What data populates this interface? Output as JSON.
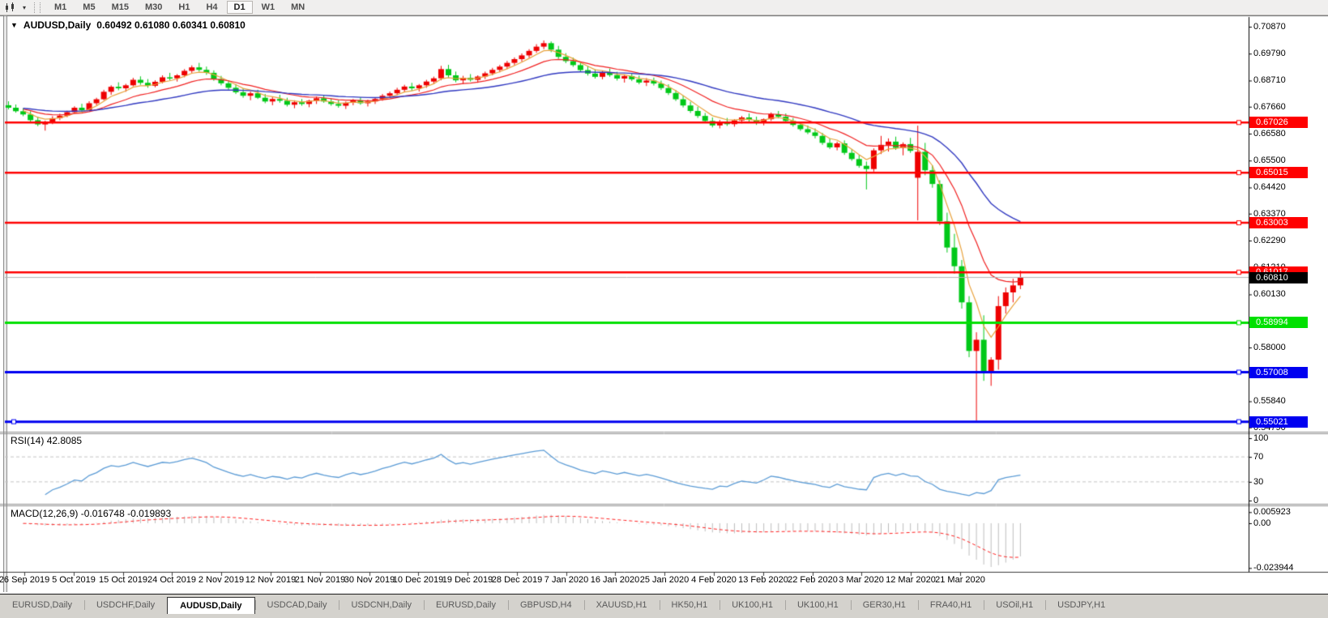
{
  "toolbar": {
    "timeframes": [
      "M1",
      "M5",
      "M15",
      "M30",
      "H1",
      "H4",
      "D1",
      "W1",
      "MN"
    ],
    "active_timeframe": "D1"
  },
  "icons": {
    "collapse_triangle": "▼",
    "dropdown_arrow": "▾"
  },
  "chart": {
    "title": "AUDUSD,Daily",
    "ohlc_text": "0.60492 0.61080 0.60341 0.60810"
  },
  "price_axis": {
    "ticks": [
      "0.70870",
      "0.69790",
      "0.68710",
      "0.67660",
      "0.66580",
      "0.65500",
      "0.64420",
      "0.63370",
      "0.62290",
      "0.61210",
      "0.60130",
      "0.58000",
      "0.56920",
      "0.55840",
      "0.54790"
    ]
  },
  "hlines": [
    {
      "label": "0.67026",
      "value": 0.67026,
      "color": "#FF0000",
      "width": 2.5
    },
    {
      "label": "0.65015",
      "value": 0.65015,
      "color": "#FF0000",
      "width": 2.5
    },
    {
      "label": "0.63003",
      "value": 0.63003,
      "color": "#FF0000",
      "width": 2.5
    },
    {
      "label": "0.61017",
      "value": 0.61017,
      "color": "#FF0000",
      "width": 2.5
    },
    {
      "label": "0.58994",
      "value": 0.58994,
      "color": "#00E000",
      "width": 3
    },
    {
      "label": "0.57008",
      "value": 0.57008,
      "color": "#0000F0",
      "width": 3
    },
    {
      "label": "0.55021",
      "value": 0.55021,
      "color": "#0000F0",
      "width": 3
    }
  ],
  "current_price": {
    "label": "0.60810",
    "value": 0.6081,
    "line_color": "#B4B4B4",
    "badge_color": "#000000"
  },
  "rsi": {
    "label": "RSI(14)",
    "value_text": "42.8085",
    "axis_ticks": [
      "100",
      "70",
      "30",
      "0"
    ],
    "levels": [
      70,
      30
    ],
    "line_color": "#5B9BD5"
  },
  "macd": {
    "label": "MACD(12,26,9)",
    "values_text": "-0.016748 -0.019893",
    "axis_ticks": [
      "0.005923",
      "0.00",
      "-0.023944"
    ],
    "hist_color": "#BDBDBD",
    "signal_color": "#FF2020"
  },
  "date_axis": {
    "labels": [
      "26 Sep 2019",
      "5 Oct 2019",
      "15 Oct 2019",
      "24 Oct 2019",
      "2 Nov 2019",
      "12 Nov 2019",
      "21 Nov 2019",
      "30 Nov 2019",
      "10 Dec 2019",
      "19 Dec 2019",
      "28 Dec 2019",
      "7 Jan 2020",
      "16 Jan 2020",
      "25 Jan 2020",
      "4 Feb 2020",
      "13 Feb 2020",
      "22 Feb 2020",
      "3 Mar 2020",
      "12 Mar 2020",
      "21 Mar 2020"
    ]
  },
  "tabs": {
    "labels": [
      "EURUSD,Daily",
      "USDCHF,Daily",
      "AUDUSD,Daily",
      "USDCAD,Daily",
      "USDCNH,Daily",
      "EURUSD,Daily",
      "GBPUSD,H4",
      "XAUUSD,H1",
      "HK50,H1",
      "UK100,H1",
      "UK100,H1",
      "GER30,H1",
      "FRA40,H1",
      "USOil,H1",
      "USDJPY,H1"
    ],
    "active_index": 2
  },
  "colors": {
    "bull": "#EE0000",
    "bear": "#00C818",
    "ma_fast": "#E8A23C",
    "ma_mid": "#F02020",
    "ma_slow": "#3038C0",
    "rsi_level_dash": "#C4C4C4",
    "axis_line": "#000000"
  },
  "chart_data": {
    "type": "candlestick",
    "symbol": "AUDUSD",
    "timeframe": "Daily",
    "title": "AUDUSD,Daily 0.60492 0.61080 0.60341 0.60810",
    "y_range": [
      0.5469,
      0.7123
    ],
    "overlays": [
      {
        "name": "EMA fast",
        "period": 5,
        "color": "#E8A23C"
      },
      {
        "name": "EMA mid",
        "period": 13,
        "color": "#F02020"
      },
      {
        "name": "EMA slow",
        "period": 34,
        "color": "#3038C0"
      }
    ],
    "levels": [
      0.67026,
      0.65015,
      0.63003,
      0.61017,
      0.58994,
      0.57008,
      0.55021
    ],
    "last_bar_ohlc": [
      0.60492,
      0.6108,
      0.60341,
      0.6081
    ],
    "bars": [
      [
        0.6772,
        0.6788,
        0.6755,
        0.6762
      ],
      [
        0.6762,
        0.6775,
        0.6742,
        0.6748
      ],
      [
        0.6748,
        0.676,
        0.6728,
        0.6735
      ],
      [
        0.6735,
        0.6748,
        0.6705,
        0.6712
      ],
      [
        0.6712,
        0.6726,
        0.6688,
        0.6695
      ],
      [
        0.6695,
        0.671,
        0.667,
        0.6702
      ],
      [
        0.6702,
        0.6728,
        0.6696,
        0.672
      ],
      [
        0.672,
        0.6738,
        0.6712,
        0.673
      ],
      [
        0.673,
        0.675,
        0.6724,
        0.6744
      ],
      [
        0.6744,
        0.6768,
        0.674,
        0.6762
      ],
      [
        0.6762,
        0.6778,
        0.6745,
        0.6752
      ],
      [
        0.6752,
        0.6788,
        0.675,
        0.678
      ],
      [
        0.678,
        0.6802,
        0.6772,
        0.6796
      ],
      [
        0.6796,
        0.6834,
        0.6792,
        0.6826
      ],
      [
        0.6826,
        0.6852,
        0.6814,
        0.6846
      ],
      [
        0.6846,
        0.6864,
        0.6832,
        0.684
      ],
      [
        0.684,
        0.6858,
        0.6826,
        0.6852
      ],
      [
        0.6852,
        0.6882,
        0.6848,
        0.6874
      ],
      [
        0.6874,
        0.6888,
        0.6854,
        0.6862
      ],
      [
        0.6862,
        0.6877,
        0.6842,
        0.685
      ],
      [
        0.685,
        0.6872,
        0.6844,
        0.6866
      ],
      [
        0.6866,
        0.6892,
        0.686,
        0.6884
      ],
      [
        0.6884,
        0.6902,
        0.6872,
        0.688
      ],
      [
        0.688,
        0.6897,
        0.6867,
        0.6892
      ],
      [
        0.6892,
        0.6917,
        0.6884,
        0.691
      ],
      [
        0.691,
        0.6932,
        0.6902,
        0.6924
      ],
      [
        0.6924,
        0.6942,
        0.6907,
        0.6914
      ],
      [
        0.6914,
        0.6927,
        0.6894,
        0.6902
      ],
      [
        0.6902,
        0.6912,
        0.687,
        0.6877
      ],
      [
        0.6877,
        0.689,
        0.6852,
        0.686
      ],
      [
        0.686,
        0.6872,
        0.6834,
        0.6842
      ],
      [
        0.6842,
        0.6857,
        0.6817,
        0.6824
      ],
      [
        0.6824,
        0.684,
        0.6802,
        0.681
      ],
      [
        0.681,
        0.6827,
        0.6792,
        0.682
      ],
      [
        0.682,
        0.6834,
        0.6797,
        0.6802
      ],
      [
        0.6802,
        0.6817,
        0.678,
        0.6787
      ],
      [
        0.6787,
        0.6804,
        0.6772,
        0.6797
      ],
      [
        0.6797,
        0.6814,
        0.6782,
        0.679
      ],
      [
        0.679,
        0.6802,
        0.6767,
        0.6774
      ],
      [
        0.6774,
        0.6792,
        0.676,
        0.6784
      ],
      [
        0.6784,
        0.6797,
        0.677,
        0.6777
      ],
      [
        0.6777,
        0.6794,
        0.6764,
        0.679
      ],
      [
        0.679,
        0.6807,
        0.6777,
        0.68
      ],
      [
        0.68,
        0.6812,
        0.6782,
        0.6787
      ],
      [
        0.6787,
        0.68,
        0.677,
        0.6777
      ],
      [
        0.6777,
        0.6792,
        0.6762,
        0.677
      ],
      [
        0.677,
        0.6787,
        0.6757,
        0.6782
      ],
      [
        0.6782,
        0.6797,
        0.6772,
        0.6792
      ],
      [
        0.6792,
        0.6804,
        0.6774,
        0.678
      ],
      [
        0.678,
        0.6794,
        0.6767,
        0.6787
      ],
      [
        0.6787,
        0.6802,
        0.6777,
        0.6797
      ],
      [
        0.6797,
        0.6817,
        0.679,
        0.681
      ],
      [
        0.681,
        0.6827,
        0.68,
        0.682
      ],
      [
        0.682,
        0.6842,
        0.6812,
        0.6834
      ],
      [
        0.6834,
        0.6854,
        0.6824,
        0.6847
      ],
      [
        0.6847,
        0.6862,
        0.683,
        0.684
      ],
      [
        0.684,
        0.6857,
        0.6827,
        0.6852
      ],
      [
        0.6852,
        0.6874,
        0.6842,
        0.6867
      ],
      [
        0.6867,
        0.6887,
        0.6857,
        0.688
      ],
      [
        0.688,
        0.693,
        0.6872,
        0.6917
      ],
      [
        0.6917,
        0.6934,
        0.6882,
        0.6892
      ],
      [
        0.6892,
        0.6907,
        0.6864,
        0.6872
      ],
      [
        0.6872,
        0.689,
        0.6857,
        0.6882
      ],
      [
        0.6882,
        0.6897,
        0.6867,
        0.6874
      ],
      [
        0.6874,
        0.6892,
        0.6862,
        0.6887
      ],
      [
        0.6887,
        0.6907,
        0.6877,
        0.69
      ],
      [
        0.69,
        0.6922,
        0.6892,
        0.6914
      ],
      [
        0.6914,
        0.6934,
        0.6904,
        0.6927
      ],
      [
        0.6927,
        0.695,
        0.6917,
        0.6942
      ],
      [
        0.6942,
        0.6964,
        0.6932,
        0.6957
      ],
      [
        0.6957,
        0.698,
        0.6947,
        0.6972
      ],
      [
        0.6972,
        0.6997,
        0.6962,
        0.699
      ],
      [
        0.699,
        0.7017,
        0.6982,
        0.7007
      ],
      [
        0.7007,
        0.7032,
        0.6997,
        0.7021
      ],
      [
        0.7021,
        0.7028,
        0.6985,
        0.6995
      ],
      [
        0.6995,
        0.701,
        0.6958,
        0.6966
      ],
      [
        0.6966,
        0.6981,
        0.6941,
        0.6949
      ],
      [
        0.6949,
        0.6963,
        0.6926,
        0.6933
      ],
      [
        0.6933,
        0.6946,
        0.6906,
        0.6913
      ],
      [
        0.6913,
        0.6929,
        0.6891,
        0.6899
      ],
      [
        0.6899,
        0.6916,
        0.6879,
        0.6886
      ],
      [
        0.6886,
        0.6911,
        0.6876,
        0.6903
      ],
      [
        0.6903,
        0.6919,
        0.6886,
        0.6893
      ],
      [
        0.6893,
        0.6906,
        0.6871,
        0.6879
      ],
      [
        0.6879,
        0.6896,
        0.6863,
        0.6889
      ],
      [
        0.6889,
        0.6901,
        0.6869,
        0.6876
      ],
      [
        0.6876,
        0.6891,
        0.6856,
        0.6863
      ],
      [
        0.6863,
        0.6881,
        0.6849,
        0.6871
      ],
      [
        0.6871,
        0.6883,
        0.6851,
        0.6859
      ],
      [
        0.6859,
        0.6871,
        0.6833,
        0.6841
      ],
      [
        0.6841,
        0.6856,
        0.6813,
        0.6821
      ],
      [
        0.6821,
        0.6833,
        0.6789,
        0.6796
      ],
      [
        0.6796,
        0.6811,
        0.6763,
        0.6771
      ],
      [
        0.6771,
        0.6786,
        0.6741,
        0.6749
      ],
      [
        0.6749,
        0.6766,
        0.6721,
        0.6729
      ],
      [
        0.6729,
        0.6741,
        0.6701,
        0.6709
      ],
      [
        0.6709,
        0.6723,
        0.6683,
        0.6691
      ],
      [
        0.6691,
        0.6713,
        0.6679,
        0.6706
      ],
      [
        0.6706,
        0.6721,
        0.6689,
        0.6696
      ],
      [
        0.6696,
        0.6716,
        0.6686,
        0.6711
      ],
      [
        0.6711,
        0.6729,
        0.6699,
        0.6723
      ],
      [
        0.6723,
        0.6739,
        0.6706,
        0.6713
      ],
      [
        0.6713,
        0.6726,
        0.6693,
        0.6701
      ],
      [
        0.6701,
        0.6719,
        0.6691,
        0.6716
      ],
      [
        0.6716,
        0.6743,
        0.6709,
        0.6736
      ],
      [
        0.6736,
        0.6749,
        0.6719,
        0.6726
      ],
      [
        0.6726,
        0.6739,
        0.6703,
        0.6709
      ],
      [
        0.6709,
        0.6721,
        0.6686,
        0.6693
      ],
      [
        0.6693,
        0.6706,
        0.6669,
        0.6676
      ],
      [
        0.6676,
        0.6691,
        0.6656,
        0.6663
      ],
      [
        0.6663,
        0.6679,
        0.6639,
        0.6649
      ],
      [
        0.6649,
        0.6661,
        0.6613,
        0.6621
      ],
      [
        0.6621,
        0.6639,
        0.6596,
        0.6603
      ],
      [
        0.6603,
        0.6626,
        0.6591,
        0.6619
      ],
      [
        0.6619,
        0.6631,
        0.6573,
        0.6581
      ],
      [
        0.6581,
        0.6596,
        0.6549,
        0.6556
      ],
      [
        0.6556,
        0.6573,
        0.6521,
        0.6529
      ],
      [
        0.6529,
        0.6546,
        0.6434,
        0.6516
      ],
      [
        0.6516,
        0.6599,
        0.6506,
        0.6591
      ],
      [
        0.6591,
        0.6649,
        0.6576,
        0.6613
      ],
      [
        0.6613,
        0.6639,
        0.6586,
        0.6626
      ],
      [
        0.6626,
        0.6646,
        0.6593,
        0.6601
      ],
      [
        0.6601,
        0.6623,
        0.6571,
        0.6616
      ],
      [
        0.6616,
        0.6641,
        0.6581,
        0.6589
      ],
      [
        0.6481,
        0.669,
        0.631,
        0.6585
      ],
      [
        0.6585,
        0.6621,
        0.6491,
        0.6511
      ],
      [
        0.6511,
        0.6531,
        0.6441,
        0.6456
      ],
      [
        0.6456,
        0.6471,
        0.6291,
        0.6306
      ],
      [
        0.6306,
        0.6341,
        0.6181,
        0.6201
      ],
      [
        0.6201,
        0.6256,
        0.6096,
        0.6126
      ],
      [
        0.6126,
        0.6151,
        0.5956,
        0.5981
      ],
      [
        0.5981,
        0.6006,
        0.5761,
        0.5786
      ],
      [
        0.5786,
        0.5861,
        0.5506,
        0.5831
      ],
      [
        0.5831,
        0.5929,
        0.5666,
        0.5701
      ],
      [
        0.5701,
        0.5761,
        0.5646,
        0.5751
      ],
      [
        0.5751,
        0.6006,
        0.5711,
        0.5966
      ],
      [
        0.5966,
        0.6041,
        0.5936,
        0.6021
      ],
      [
        0.6021,
        0.6076,
        0.5981,
        0.6049
      ],
      [
        0.60492,
        0.6108,
        0.60341,
        0.6081
      ]
    ]
  }
}
